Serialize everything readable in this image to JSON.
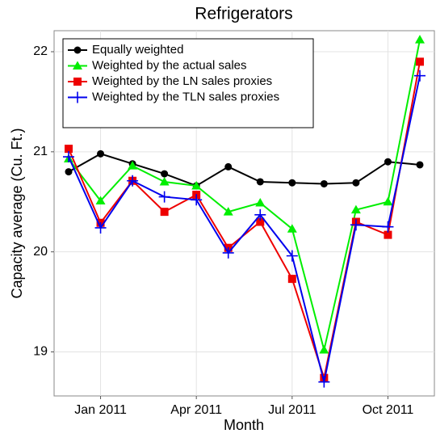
{
  "chart_data": {
    "type": "line",
    "title": "Refrigerators",
    "x_label": "Month",
    "y_label": "Capacity average (Cu. Ft.)",
    "categories": [
      null,
      "Jan 2011",
      null,
      null,
      "Apr 2011",
      null,
      null,
      "Jul 2011",
      null,
      null,
      "Oct 2011",
      null
    ],
    "series": [
      {
        "name": "Equally weighted",
        "color": "#000000",
        "marker": "circle",
        "values": [
          20.8,
          20.98,
          20.88,
          20.78,
          20.66,
          20.85,
          20.7,
          20.69,
          20.68,
          20.69,
          20.9,
          20.87
        ]
      },
      {
        "name": "Weighted by the actual sales",
        "color": "#00ee00",
        "marker": "triangle",
        "values": [
          20.93,
          20.51,
          20.86,
          20.7,
          20.66,
          20.4,
          20.49,
          20.23,
          19.02,
          20.42,
          20.5,
          22.12
        ]
      },
      {
        "name": "Weighted by the LN sales proxies",
        "color": "#ee0000",
        "marker": "square",
        "values": [
          21.03,
          20.29,
          20.71,
          20.4,
          20.57,
          20.04,
          20.3,
          19.73,
          18.74,
          20.3,
          20.17,
          21.9
        ]
      },
      {
        "name": "Weighted by the TLN sales proxies",
        "color": "#0000ee",
        "marker": "plus",
        "values": [
          20.95,
          20.24,
          20.71,
          20.55,
          20.52,
          19.99,
          20.37,
          19.96,
          18.7,
          20.27,
          20.25,
          21.76
        ]
      }
    ],
    "ylim": [
      18.56,
      22.21
    ],
    "yticks": [
      19,
      20,
      21,
      22
    ],
    "grid": true,
    "legend": "top-left"
  }
}
